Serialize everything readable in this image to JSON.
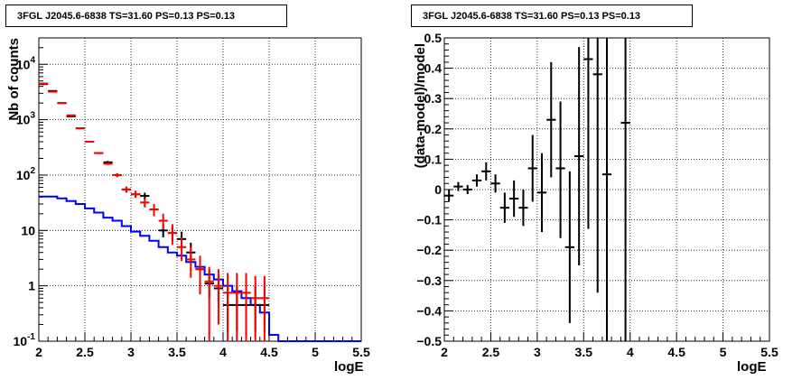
{
  "chart_data": [
    {
      "type": "step-histogram-with-errorbars",
      "title": "3FGL J2045.6-6838 TS=31.60 PS=0.13 PS=0.13",
      "xlabel": "logE",
      "ylabel": "Nb of counts",
      "xlim": [
        2,
        5.5
      ],
      "ylim": [
        0.1,
        30000
      ],
      "log_y": true,
      "grid": true,
      "x_ticks": [
        "2",
        "2.5",
        "3",
        "3.5",
        "4",
        "4.5",
        "5",
        "5.5"
      ],
      "y_ticks": [
        "10^-1",
        "1",
        "10",
        "10^2",
        "10^3",
        "10^4"
      ],
      "series": [
        {
          "color": "#0000ff",
          "kind": "step",
          "x_edges": [
            2.0,
            2.1,
            2.2,
            2.3,
            2.4,
            2.5,
            2.6,
            2.7,
            2.8,
            2.9,
            3.0,
            3.1,
            3.2,
            3.3,
            3.4,
            3.5,
            3.6,
            3.7,
            3.8,
            3.9,
            4.0,
            4.1,
            4.2,
            4.3,
            4.4,
            4.5,
            4.6,
            4.7,
            4.8,
            4.9,
            5.0,
            5.1,
            5.2,
            5.3,
            5.4,
            5.5
          ],
          "values": [
            41,
            41,
            38,
            34,
            30,
            25,
            21,
            17,
            15,
            12,
            9.5,
            8,
            6.5,
            5,
            4,
            3.5,
            2.7,
            2.2,
            1.6,
            1.3,
            1.0,
            0.8,
            0.6,
            0.45,
            0.33,
            0.13,
            0.1,
            0.1,
            0.1,
            0.1,
            0.1,
            0.1,
            0.1,
            0.1,
            0.1
          ]
        },
        {
          "color": "#ff0000",
          "kind": "points",
          "x": [
            2.05,
            2.15,
            2.25,
            2.35,
            2.45,
            2.55,
            2.65,
            2.75,
            2.85,
            2.95,
            3.05,
            3.15,
            3.25,
            3.35,
            3.45,
            3.55,
            3.65,
            3.75,
            3.85,
            3.95,
            4.05,
            4.15,
            4.25,
            4.35,
            4.45
          ],
          "y": [
            4500,
            3200,
            2000,
            1200,
            700,
            400,
            250,
            160,
            100,
            55,
            45,
            32,
            24,
            15,
            9,
            5,
            3,
            2,
            1.2,
            1.0,
            0.75,
            0.75,
            0.75,
            0.6,
            0.6
          ],
          "ylo": [
            4300,
            3100,
            1950,
            1160,
            680,
            385,
            240,
            152,
            92,
            48,
            39,
            26,
            18,
            10.5,
            5.5,
            2.8,
            1.4,
            0.7,
            0.1,
            0.2,
            0.1,
            0.1,
            0.1,
            0.1,
            0.1
          ],
          "yhi": [
            4700,
            3300,
            2050,
            1240,
            720,
            415,
            260,
            168,
            108,
            62,
            52,
            38,
            30,
            20,
            13,
            7.5,
            5,
            3.5,
            2.2,
            2.0,
            1.7,
            1.7,
            1.7,
            1.5,
            1.5
          ]
        },
        {
          "color": "#000000",
          "kind": "points",
          "x": [
            2.05,
            2.15,
            2.25,
            2.35,
            2.45,
            2.55,
            2.65,
            2.75,
            2.85,
            2.95,
            3.05,
            3.15,
            3.25,
            3.35,
            3.45,
            3.55,
            3.65,
            3.75,
            3.85,
            3.95,
            4.05,
            4.15,
            4.25,
            4.35,
            4.45
          ],
          "y": [
            4400,
            3300,
            2000,
            1150,
            700,
            400,
            250,
            170,
            100,
            55,
            45,
            42,
            24,
            10,
            9,
            7,
            4,
            2,
            1.1,
            0.9,
            0.45,
            0.45,
            0.45,
            0.45,
            0.45
          ],
          "ylo": [
            4200,
            3200,
            1950,
            1120,
            680,
            385,
            240,
            160,
            92,
            48,
            39,
            36,
            20,
            7.5,
            6.5,
            5,
            2.5,
            1.2,
            0.6,
            0.5,
            0.15,
            0.15,
            0.15,
            0.15,
            0.15
          ],
          "yhi": [
            4600,
            3400,
            2050,
            1180,
            720,
            415,
            260,
            180,
            108,
            62,
            52,
            48,
            28,
            13,
            12,
            9.5,
            6,
            3.2,
            1.9,
            1.6,
            1.0,
            1.0,
            1.0,
            1.0,
            1.0
          ]
        }
      ]
    },
    {
      "type": "scatter-with-errorbars",
      "title": "3FGL J2045.6-6838 TS=31.60 PS=0.13 PS=0.13",
      "xlabel": "logE",
      "ylabel": "(data-model)/model",
      "xlim": [
        2,
        5.5
      ],
      "ylim": [
        -0.5,
        0.5
      ],
      "grid": true,
      "x_ticks": [
        "2",
        "2.5",
        "3",
        "3.5",
        "4",
        "4.5",
        "5",
        "5.5"
      ],
      "y_ticks": [
        "−0.5",
        "−0.4",
        "−0.3",
        "−0.2",
        "−0.1",
        "0",
        "0.1",
        "0.2",
        "0.3",
        "0.4",
        "0.5"
      ],
      "series": [
        {
          "color": "#000000",
          "x": [
            2.05,
            2.15,
            2.25,
            2.35,
            2.45,
            2.55,
            2.65,
            2.75,
            2.85,
            2.95,
            3.05,
            3.15,
            3.25,
            3.35,
            3.45,
            3.55,
            3.65,
            3.75,
            3.95
          ],
          "y": [
            -0.02,
            0.01,
            0.0,
            0.03,
            0.06,
            0.02,
            -0.06,
            -0.03,
            -0.06,
            0.07,
            -0.01,
            0.23,
            0.07,
            -0.19,
            0.11,
            0.43,
            0.38,
            0.05,
            0.22
          ],
          "ylo": [
            -0.04,
            -0.005,
            -0.015,
            0.01,
            0.03,
            -0.01,
            -0.11,
            -0.09,
            -0.12,
            -0.04,
            -0.14,
            0.04,
            -0.16,
            -0.44,
            -0.25,
            -0.13,
            -0.34,
            -0.5,
            -0.5
          ],
          "yhi": [
            0.0,
            0.025,
            0.015,
            0.05,
            0.09,
            0.05,
            -0.01,
            0.03,
            0.0,
            0.18,
            0.12,
            0.42,
            0.29,
            0.06,
            0.47,
            0.5,
            0.5,
            0.5,
            0.5
          ]
        }
      ]
    }
  ]
}
